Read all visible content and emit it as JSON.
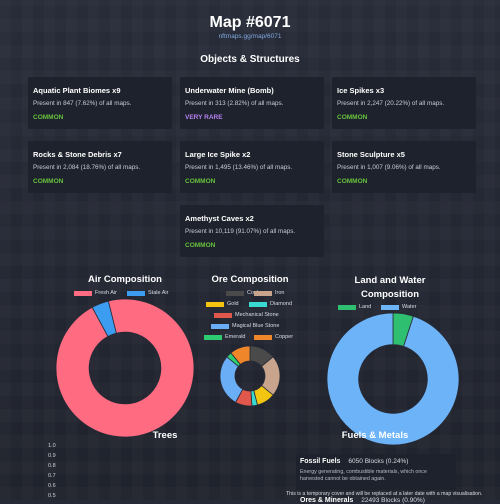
{
  "header": {
    "title": "Map #6071",
    "url": "nftmaps.gg/map/6071"
  },
  "objects": {
    "heading": "Objects & Structures",
    "cards": [
      {
        "name": "Aquatic Plant Biomes x9",
        "desc": "Present in 847 (7.62%) of all maps.",
        "rarity": "COMMON",
        "color": "#67c23a"
      },
      {
        "name": "Underwater Mine (Bomb)",
        "desc": "Present in 313 (2.82%) of all maps.",
        "rarity": "VERY RARE",
        "color": "#b580f0"
      },
      {
        "name": "Ice Spikes x3",
        "desc": "Present in 2,247 (20.22%) of all maps.",
        "rarity": "COMMON",
        "color": "#67c23a"
      },
      {
        "name": "Rocks & Stone Debris x7",
        "desc": "Present in 2,084 (18.76%) of all maps.",
        "rarity": "COMMON",
        "color": "#67c23a"
      },
      {
        "name": "Large Ice Spike x2",
        "desc": "Present in 1,495 (13.46%) of all maps.",
        "rarity": "COMMON",
        "color": "#67c23a"
      },
      {
        "name": "Stone Sculpture x5",
        "desc": "Present in 1,007 (9.06%) of all maps.",
        "rarity": "COMMON",
        "color": "#67c23a"
      },
      {
        "name": "Amethyst Caves x2",
        "desc": "Present in 10,119 (91.07%) of all maps.",
        "rarity": "COMMON",
        "color": "#67c23a"
      }
    ]
  },
  "air": {
    "title": "Air Composition",
    "legend": [
      {
        "label": "Fresh Air",
        "color": "#ff6b81"
      },
      {
        "label": "Stale Air",
        "color": "#3b9cf0"
      }
    ]
  },
  "ore": {
    "title": "Ore Composition",
    "legend": [
      {
        "label": "Coal",
        "color": "#4a4a4a"
      },
      {
        "label": "Iron",
        "color": "#c9a48c"
      },
      {
        "label": "Gold",
        "color": "#f2c511"
      },
      {
        "label": "Diamond",
        "color": "#38d9d0"
      },
      {
        "label": "Mechanical Stone",
        "color": "#e0584b"
      },
      {
        "label": "Magical Blue Stone",
        "color": "#6aaef5"
      },
      {
        "label": "Emerald",
        "color": "#2ecc71"
      },
      {
        "label": "Copper",
        "color": "#f0862a"
      }
    ]
  },
  "land": {
    "title_line1": "Land and Water",
    "title_line2": "Composition",
    "legend": [
      {
        "label": "Land",
        "color": "#2fbf71"
      },
      {
        "label": "Water",
        "color": "#6db3f8"
      }
    ]
  },
  "chart_data": [
    {
      "type": "pie",
      "title": "Air Composition",
      "labels": [
        "Fresh Air",
        "Stale Air"
      ],
      "values": [
        96,
        4
      ],
      "colors": [
        "#ff6b81",
        "#3b9cf0"
      ]
    },
    {
      "type": "pie",
      "title": "Ore Composition",
      "labels": [
        "Coal",
        "Iron",
        "Gold",
        "Diamond",
        "Mechanical Stone",
        "Magical Blue Stone",
        "Emerald",
        "Copper"
      ],
      "values": [
        14,
        22,
        10,
        3,
        9,
        28,
        3,
        11
      ],
      "colors": [
        "#4a4a4a",
        "#c9a48c",
        "#f2c511",
        "#38d9d0",
        "#e0584b",
        "#6aaef5",
        "#2ecc71",
        "#f0862a"
      ]
    },
    {
      "type": "pie",
      "title": "Land and Water Composition",
      "labels": [
        "Land",
        "Water"
      ],
      "values": [
        5,
        95
      ],
      "colors": [
        "#2fbf71",
        "#6db3f8"
      ]
    },
    {
      "type": "bar",
      "title": "Trees",
      "ylim": [
        0,
        1.0
      ],
      "yticks": [
        "1.0",
        "0.9",
        "0.8",
        "0.7",
        "0.6",
        "0.5"
      ]
    }
  ],
  "trees": {
    "title": "Trees",
    "ticks": [
      "1.0",
      "0.9",
      "0.8",
      "0.7",
      "0.6",
      "0.5"
    ]
  },
  "fuels": {
    "heading": "Fuels & Metals",
    "fossil_name": "Fossil Fuels",
    "fossil_amount": "6050 Blocks (0.24%)",
    "fossil_desc1": "Energy generating, combustible materials, which once",
    "fossil_desc2": "harvested cannot be obtained again.",
    "notice": "This is a temporary cover and will be replaced at a later date with a map visualisation.",
    "ores_name": "Ores & Minerals",
    "ores_amount": "22493 Blocks (0.90%)"
  }
}
